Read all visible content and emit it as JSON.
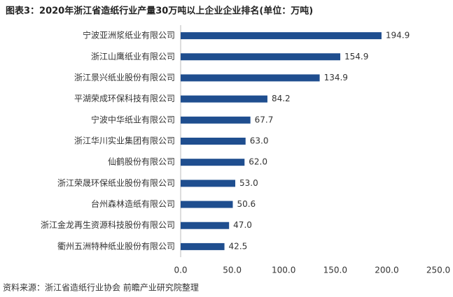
{
  "chart_data": {
    "type": "hbar",
    "title": "图表3：2020年浙江省造纸行业产量30万吨以上企业企业排名(单位：万吨)",
    "source": "资料来源：浙江省造纸行业协会 前瞻产业研究院整理",
    "categories": [
      "宁波亚洲浆纸业有限公司",
      "浙江山鹰纸业有限公司",
      "浙江景兴纸业股份有限公司",
      "平湖荣成环保科技有限公司",
      "宁波中华纸业有限公司",
      "浙江华川实业集团有限公司",
      "仙鹤股份有限公司",
      "浙江荣晟环保纸业股份有限公司",
      "台州森林造纸有限公司",
      "浙江金龙再生资源科技股份有限公司",
      "衢州五洲特种纸业股份有限公司"
    ],
    "values": [
      194.9,
      154.9,
      134.9,
      84.2,
      67.7,
      63.0,
      62.0,
      53.0,
      50.6,
      47.0,
      42.5
    ],
    "value_labels": [
      "194.9",
      "154.9",
      "134.9",
      "84.2",
      "67.7",
      "63.0",
      "62.0",
      "53.0",
      "50.6",
      "47.0",
      "42.5"
    ],
    "color": "#1f4e8f",
    "xlim": [
      0,
      250
    ],
    "xticks": [
      {
        "value": 0,
        "label": "0.0"
      },
      {
        "value": 50,
        "label": "50.0"
      },
      {
        "value": 100,
        "label": "100.0"
      },
      {
        "value": 150,
        "label": "150.0"
      },
      {
        "value": 200,
        "label": "200.0"
      },
      {
        "value": 250,
        "label": "250.0"
      }
    ],
    "grid": false
  }
}
